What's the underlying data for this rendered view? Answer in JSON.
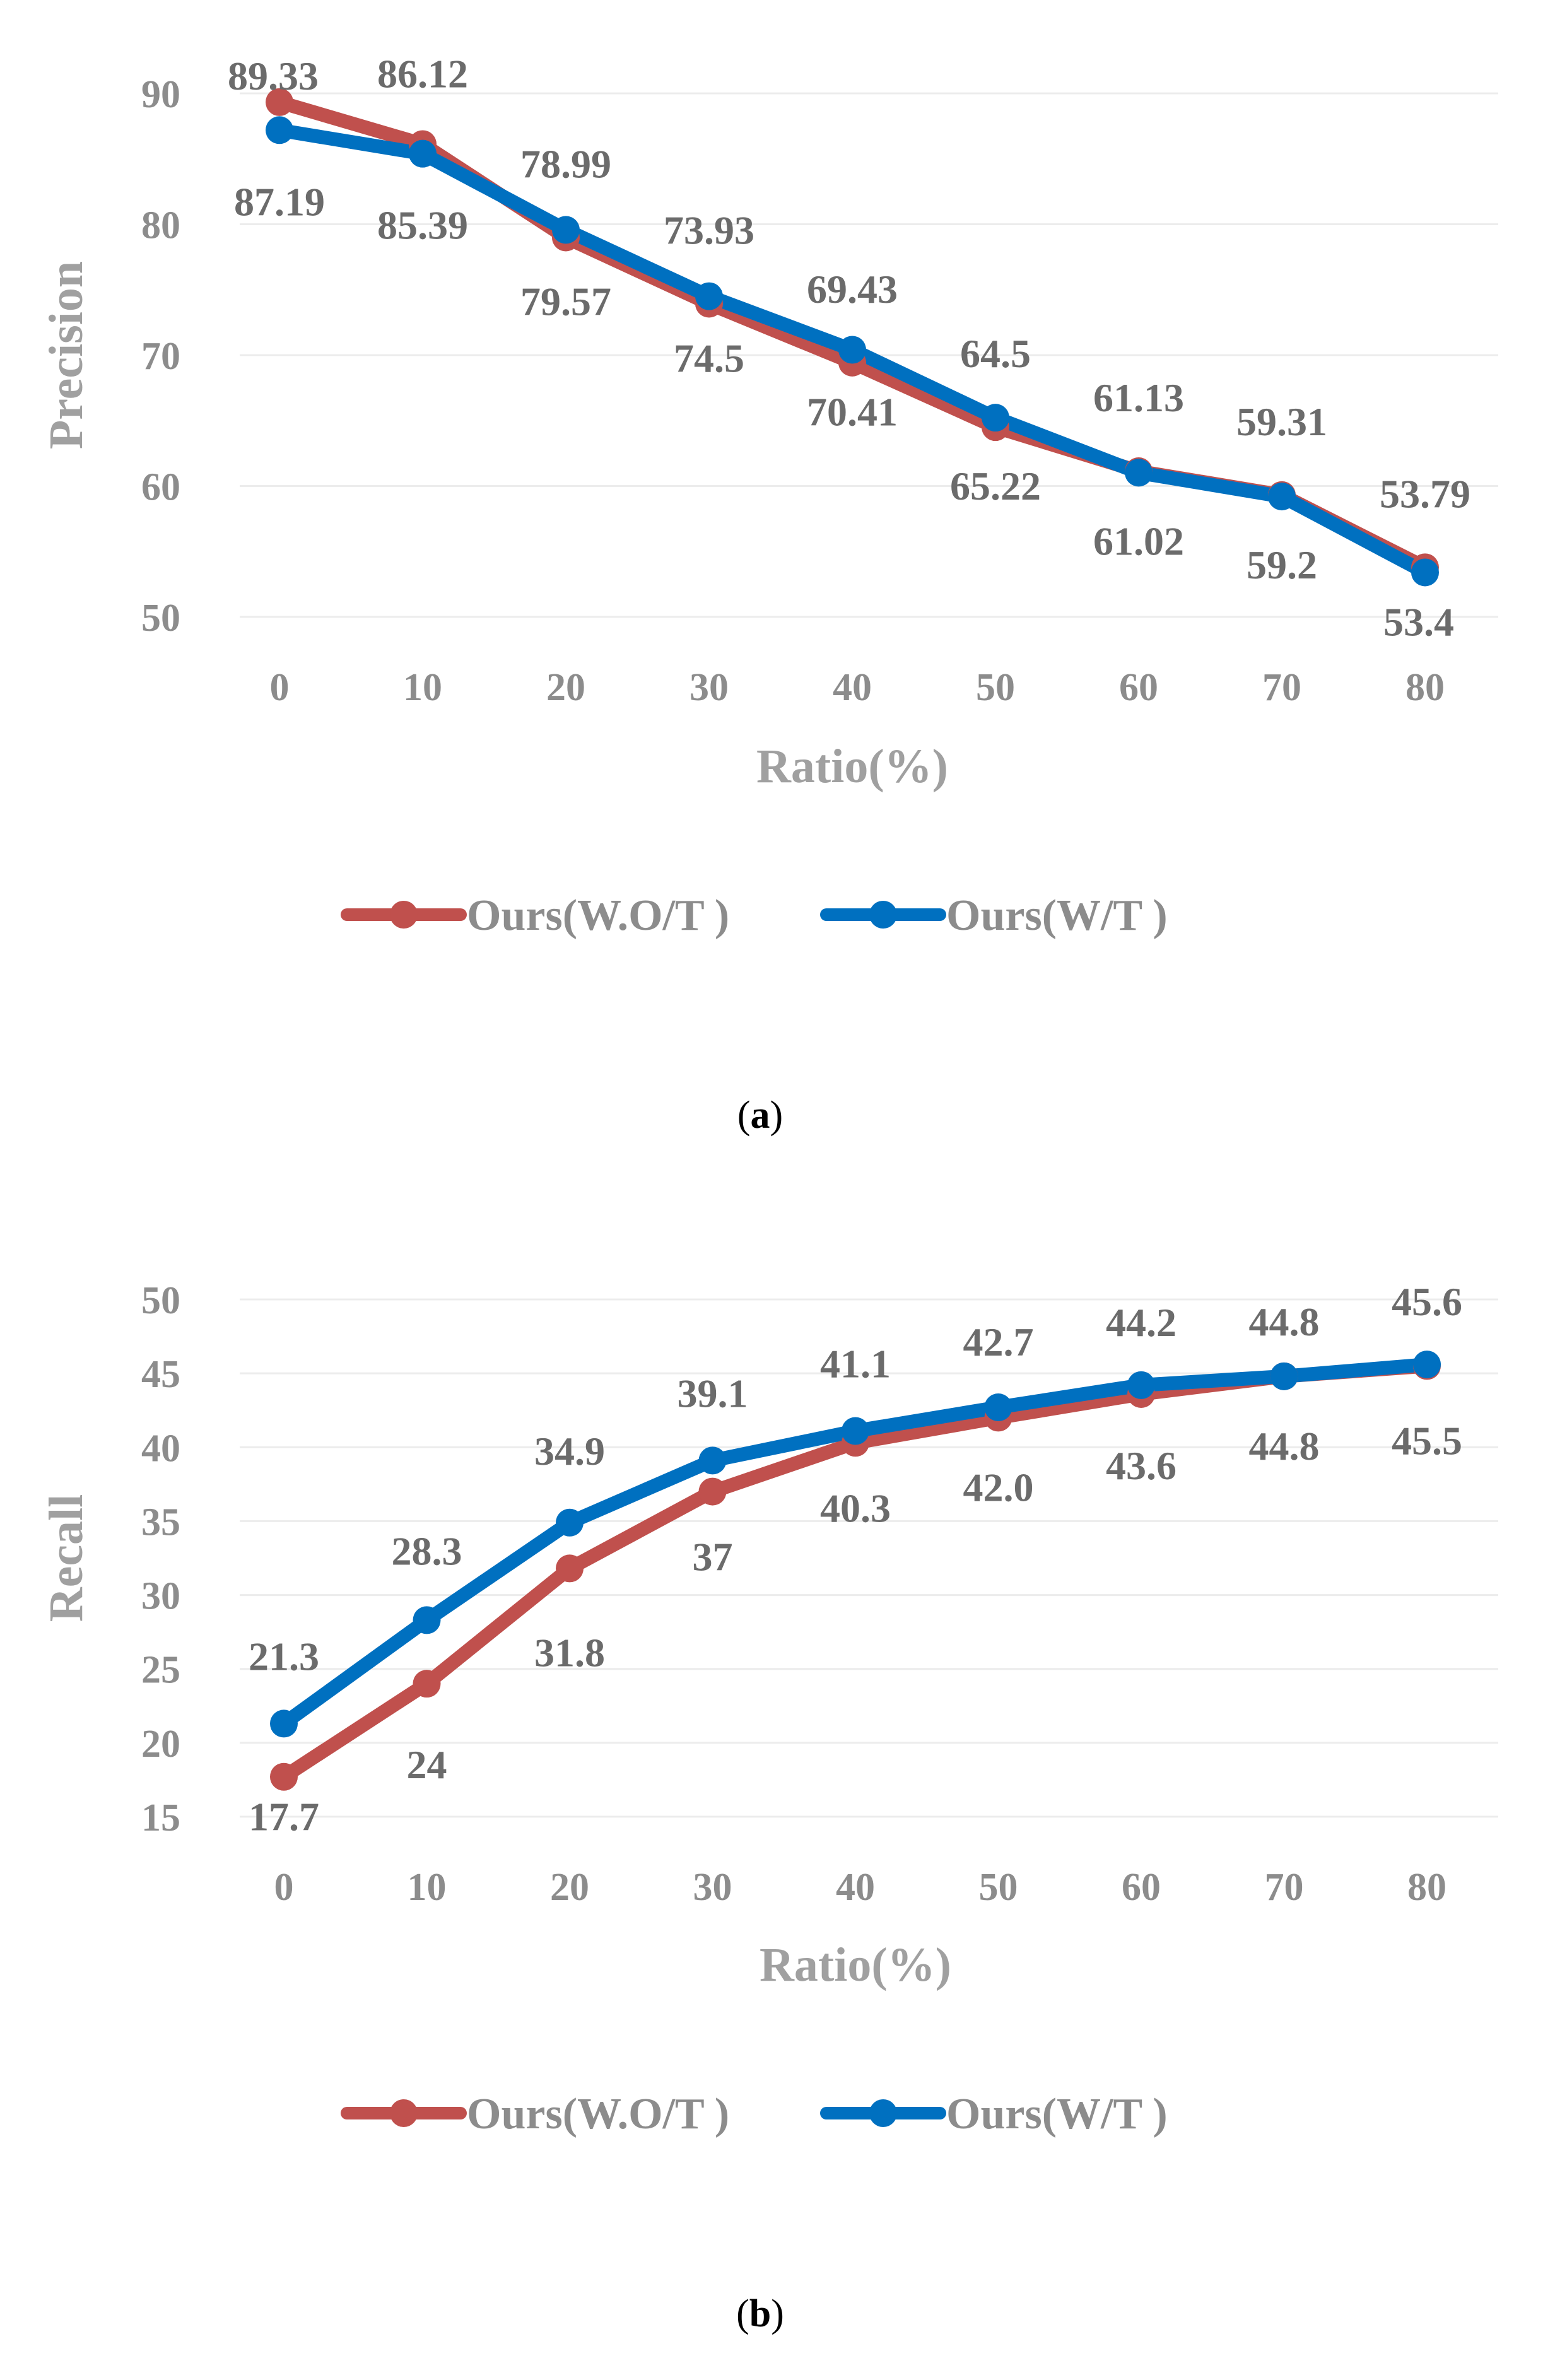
{
  "colors": {
    "wo": "#c0504d",
    "w": "#0070c0",
    "grid": "#ececec"
  },
  "chart_data": [
    {
      "type": "line",
      "caption_letter": "a",
      "x": [
        "0",
        "10",
        "20",
        "30",
        "40",
        "50",
        "60",
        "70",
        "80"
      ],
      "xlabel": "Ratio(%)",
      "ylabel": "Precision",
      "yticks": [
        50,
        60,
        70,
        80,
        90
      ],
      "ylim": [
        50,
        90
      ],
      "series": [
        {
          "name": "Ours(W.O/T )",
          "key": "wo",
          "values": [
            89.33,
            86.12,
            78.99,
            73.93,
            69.43,
            64.5,
            61.13,
            59.31,
            53.79
          ],
          "labels": [
            "89.33",
            "86.12",
            "78.99",
            "73.93",
            "69.43",
            "64.5",
            "61.13",
            "59.31",
            "53.79"
          ]
        },
        {
          "name": "Ours(W/T )",
          "key": "w",
          "values": [
            87.19,
            85.39,
            79.57,
            74.5,
            70.41,
            65.22,
            61.02,
            59.2,
            53.4
          ],
          "labels": [
            "87.19",
            "85.39",
            "79.57",
            "74.5",
            "70.41",
            "65.22",
            "61.02",
            "59.2",
            "53.4"
          ]
        }
      ],
      "legend": [
        "Ours(W.O/T )",
        "Ours(W/T )"
      ]
    },
    {
      "type": "line",
      "caption_letter": "b",
      "x": [
        "0",
        "10",
        "20",
        "30",
        "40",
        "50",
        "60",
        "70",
        "80"
      ],
      "xlabel": "Ratio(%)",
      "ylabel": "Recall",
      "yticks": [
        15,
        20,
        25,
        30,
        35,
        40,
        45,
        50
      ],
      "ylim": [
        15,
        50
      ],
      "series": [
        {
          "name": "Ours(W.O/T )",
          "key": "wo",
          "values": [
            17.7,
            24,
            31.8,
            37,
            40.3,
            42.0,
            43.6,
            44.8,
            45.5
          ],
          "labels": [
            "17.7",
            "24",
            "31.8",
            "37",
            "40.3",
            "42.0",
            "43.6",
            "44.8",
            "45.5"
          ]
        },
        {
          "name": "Ours(W/T )",
          "key": "w",
          "values": [
            21.3,
            28.3,
            34.9,
            39.1,
            41.1,
            42.7,
            44.2,
            44.8,
            45.6
          ],
          "labels": [
            "21.3",
            "28.3",
            "34.9",
            "39.1",
            "41.1",
            "42.7",
            "44.2",
            "44.8",
            "45.6"
          ]
        }
      ],
      "legend": [
        "Ours(W.O/T )",
        "Ours(W/T )"
      ]
    }
  ]
}
